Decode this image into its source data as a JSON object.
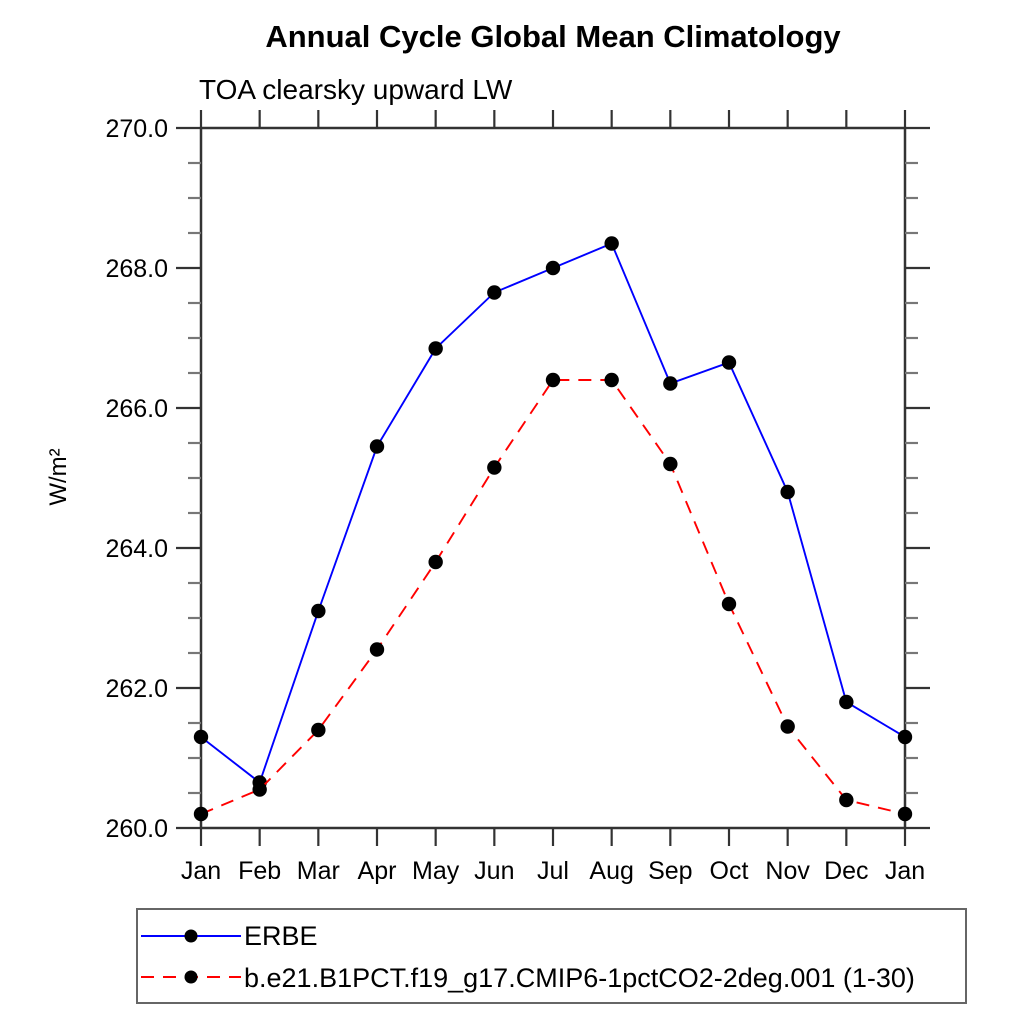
{
  "chart_data": {
    "type": "line",
    "title": "Annual Cycle Global Mean Climatology",
    "subtitle": "TOA clearsky upward LW",
    "ylabel": "W/m²",
    "xlabel": "",
    "categories": [
      "Jan",
      "Feb",
      "Mar",
      "Apr",
      "May",
      "Jun",
      "Jul",
      "Aug",
      "Sep",
      "Oct",
      "Nov",
      "Dec",
      "Jan"
    ],
    "ylim": [
      260.0,
      270.0
    ],
    "ytick_major_step": 2.0,
    "ytick_minor_step": 0.5,
    "ytick_labels": [
      "260.0",
      "262.0",
      "264.0",
      "266.0",
      "268.0",
      "270.0"
    ],
    "grid": "off",
    "legend_position": "below",
    "marker_color": "#000000",
    "series": [
      {
        "name": "ERBE",
        "color": "#0000ff",
        "line_style": "solid",
        "values": [
          261.3,
          260.65,
          263.1,
          265.45,
          266.85,
          267.65,
          268.0,
          268.35,
          266.35,
          266.65,
          264.8,
          261.8,
          261.3
        ]
      },
      {
        "name": "b.e21.B1PCT.f19_g17.CMIP6-1pctCO2-2deg.001 (1-30)",
        "color": "#ff0000",
        "line_style": "dashed",
        "values": [
          260.2,
          260.55,
          261.4,
          262.55,
          263.8,
          265.15,
          266.4,
          266.4,
          265.2,
          263.2,
          261.45,
          260.4,
          260.2
        ]
      }
    ]
  }
}
